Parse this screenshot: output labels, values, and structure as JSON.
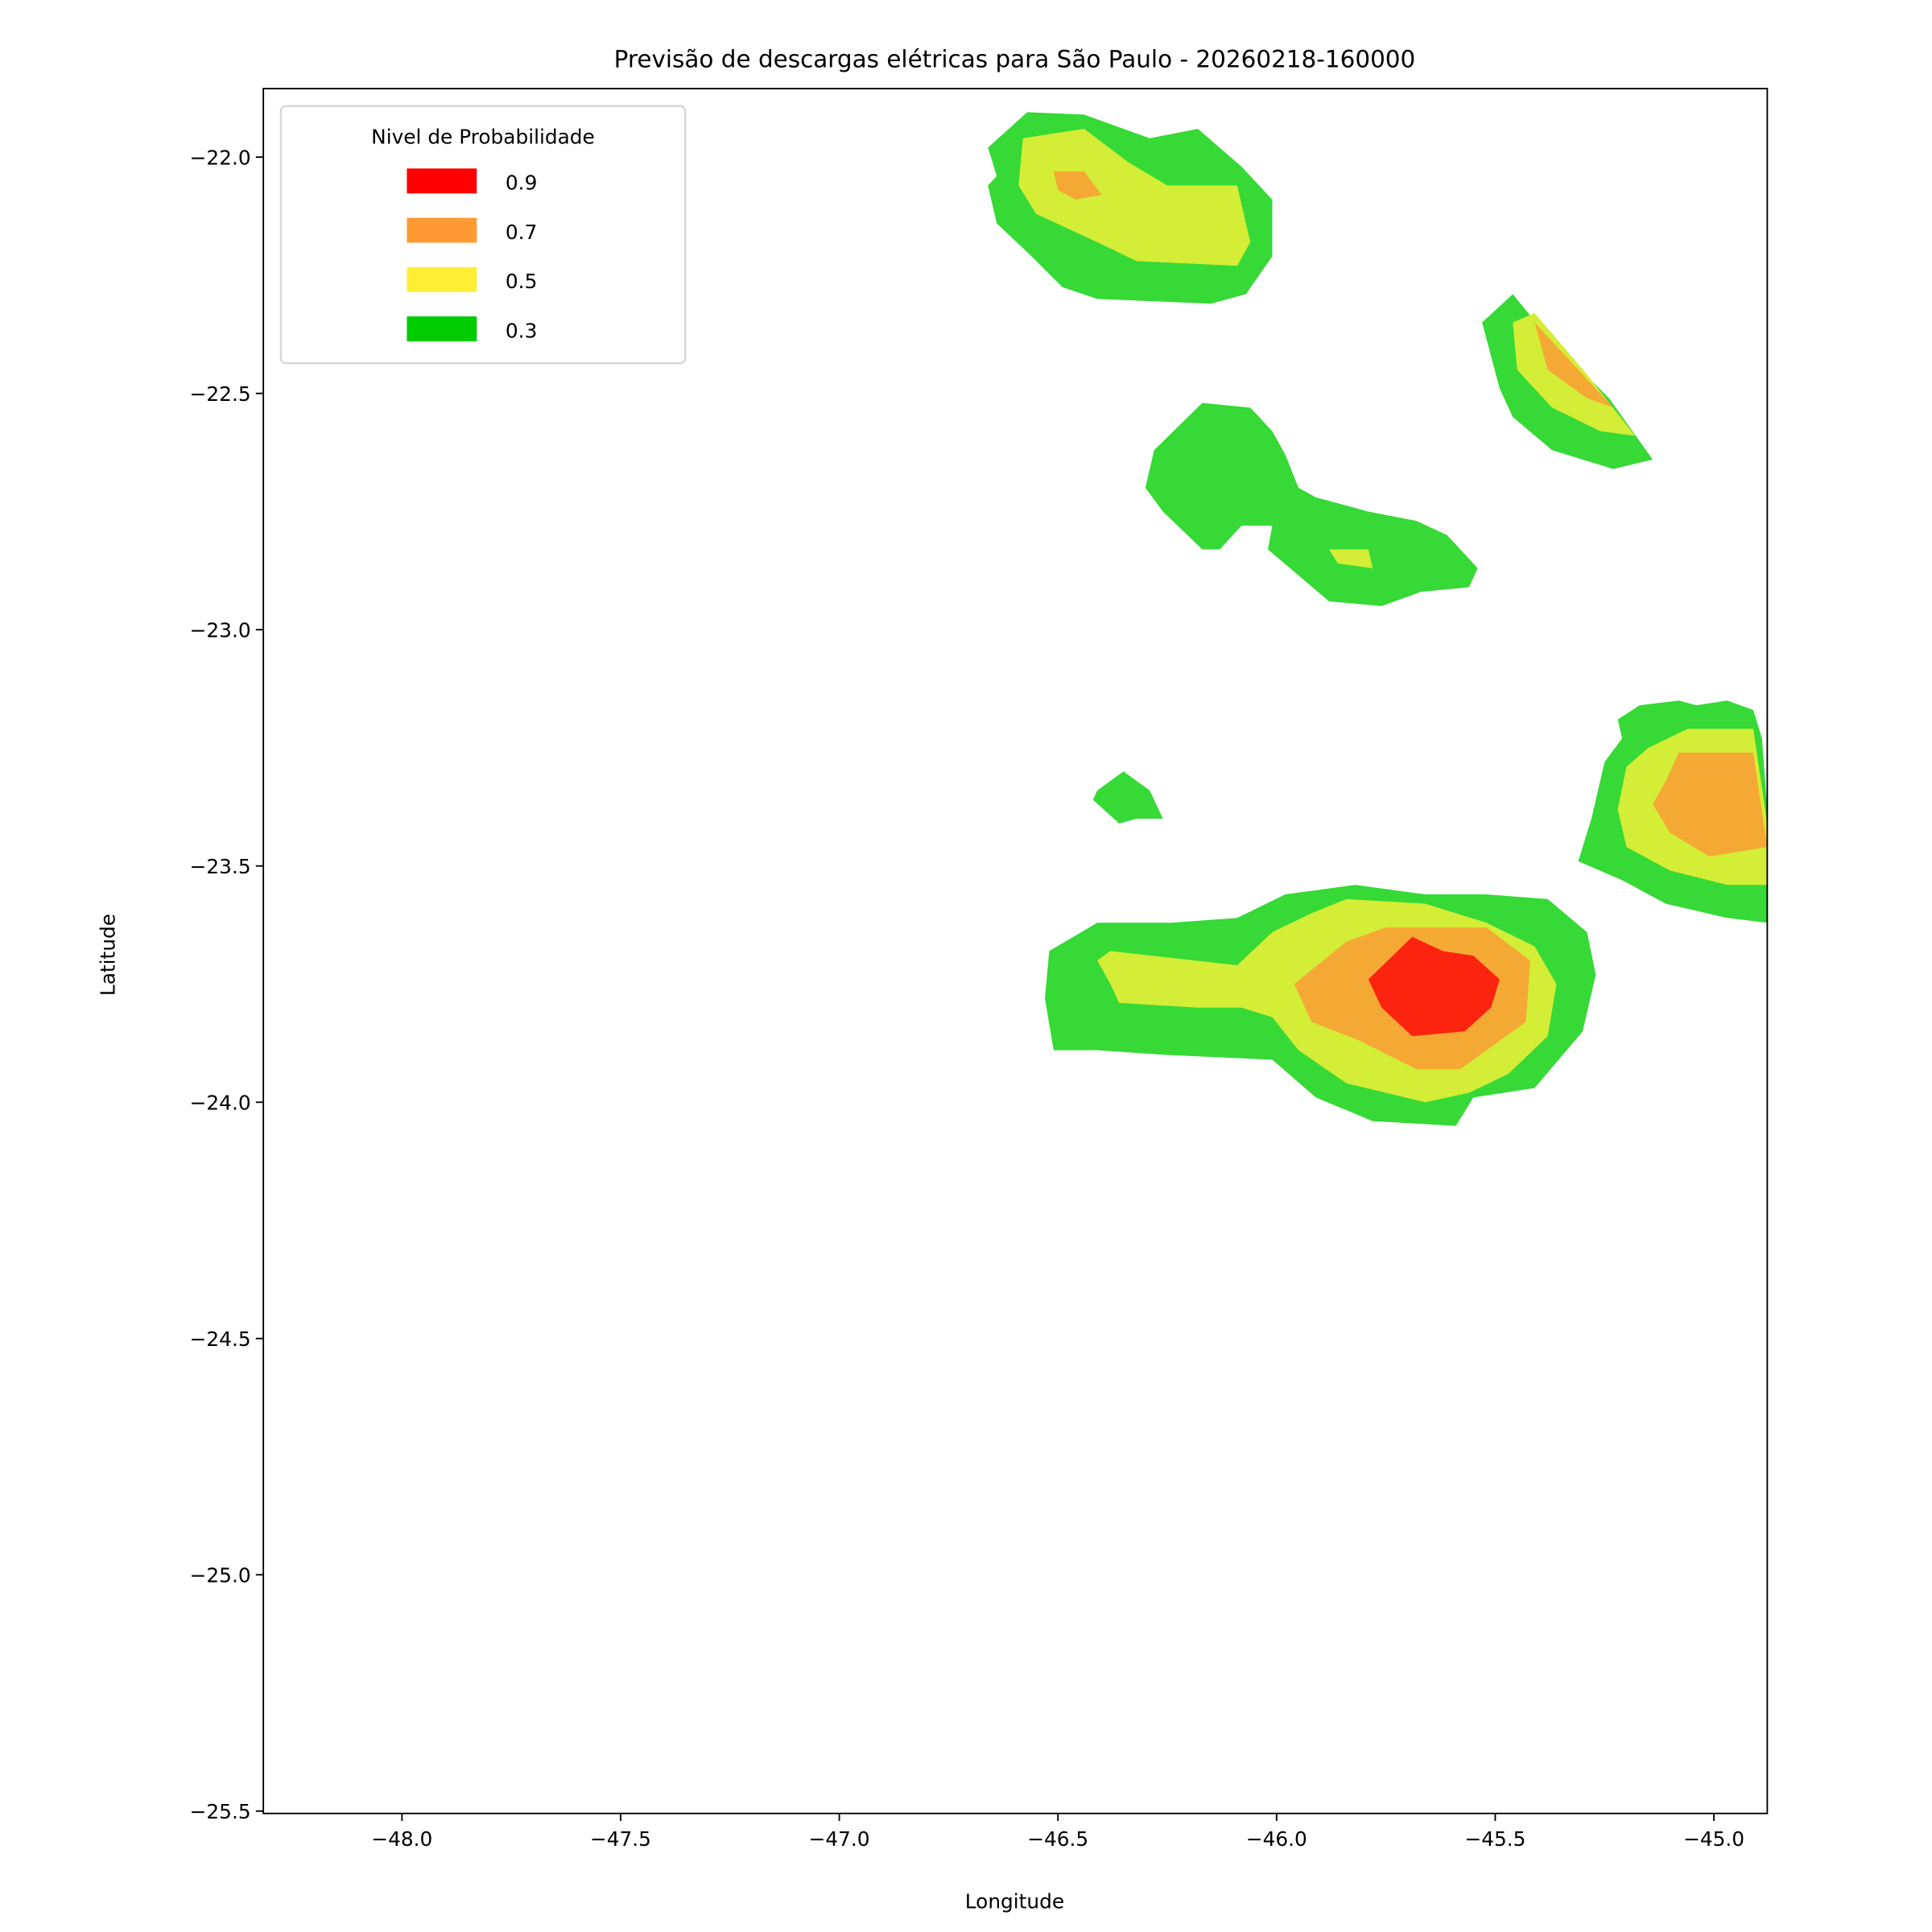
{
  "chart_data": {
    "type": "contourf",
    "title": "Previsão de descargas elétricas para São Paulo - 20260218-160000",
    "xlabel": "Longitude",
    "ylabel": "Latitude",
    "xlim": [
      -48.317,
      -44.878
    ],
    "ylim": [
      -25.505,
      -21.855
    ],
    "xticks": [
      -48.0,
      -47.5,
      -47.0,
      -46.5,
      -46.0,
      -45.5,
      -45.0
    ],
    "xtick_labels": [
      "−48.0",
      "−47.5",
      "−47.0",
      "−46.5",
      "−46.0",
      "−45.5",
      "−45.0"
    ],
    "yticks": [
      -22.0,
      -22.5,
      -23.0,
      -23.5,
      -24.0,
      -24.5,
      -25.0,
      -25.5
    ],
    "ytick_labels": [
      "−22.0",
      "−22.5",
      "−23.0",
      "−23.5",
      "−24.0",
      "−24.5",
      "−25.0",
      "−25.5"
    ],
    "grid": false,
    "legend": {
      "title": "Nivel de Probabilidade",
      "placement": "upper-left",
      "entries": [
        {
          "label": "0.9",
          "color": "#ff0000"
        },
        {
          "label": "0.7",
          "color": "#ff9933"
        },
        {
          "label": "0.5",
          "color": "#ffee33"
        },
        {
          "label": "0.3",
          "color": "#00cc00"
        }
      ]
    },
    "fill_colors": {
      "0.3": "#36d936",
      "0.5": "#d4ed36",
      "0.7": "#f5a935",
      "0.9": "#fc240e"
    },
    "regions": [
      {
        "level": "0.3",
        "points": [
          [
            -46.66,
            -21.98
          ],
          [
            -46.57,
            -21.905
          ],
          [
            -46.44,
            -21.91
          ],
          [
            -46.29,
            -21.96
          ],
          [
            -46.18,
            -21.94
          ],
          [
            -46.08,
            -22.02
          ],
          [
            -46.01,
            -22.09
          ],
          [
            -46.01,
            -22.21
          ],
          [
            -46.07,
            -22.29
          ],
          [
            -46.15,
            -22.31
          ],
          [
            -46.41,
            -22.3
          ],
          [
            -46.49,
            -22.275
          ],
          [
            -46.56,
            -22.21
          ],
          [
            -46.64,
            -22.14
          ],
          [
            -46.66,
            -22.06
          ],
          [
            -46.64,
            -22.04
          ]
        ]
      },
      {
        "level": "0.5",
        "points": [
          [
            -46.58,
            -21.96
          ],
          [
            -46.44,
            -21.94
          ],
          [
            -46.34,
            -22.01
          ],
          [
            -46.25,
            -22.06
          ],
          [
            -46.09,
            -22.06
          ],
          [
            -46.06,
            -22.18
          ],
          [
            -46.09,
            -22.23
          ],
          [
            -46.32,
            -22.22
          ],
          [
            -46.41,
            -22.18
          ],
          [
            -46.55,
            -22.12
          ],
          [
            -46.59,
            -22.06
          ]
        ]
      },
      {
        "level": "0.7",
        "points": [
          [
            -46.51,
            -22.03
          ],
          [
            -46.44,
            -22.03
          ],
          [
            -46.4,
            -22.08
          ],
          [
            -46.46,
            -22.09
          ],
          [
            -46.5,
            -22.07
          ]
        ]
      },
      {
        "level": "0.3",
        "points": [
          [
            -45.53,
            -22.35
          ],
          [
            -45.46,
            -22.29
          ],
          [
            -45.38,
            -22.38
          ],
          [
            -45.24,
            -22.51
          ],
          [
            -45.14,
            -22.64
          ],
          [
            -45.23,
            -22.66
          ],
          [
            -45.37,
            -22.62
          ],
          [
            -45.46,
            -22.55
          ],
          [
            -45.49,
            -22.49
          ]
        ]
      },
      {
        "level": "0.5",
        "points": [
          [
            -45.46,
            -22.35
          ],
          [
            -45.41,
            -22.33
          ],
          [
            -45.29,
            -22.46
          ],
          [
            -45.18,
            -22.59
          ],
          [
            -45.26,
            -22.58
          ],
          [
            -45.37,
            -22.53
          ],
          [
            -45.45,
            -22.45
          ]
        ]
      },
      {
        "level": "0.7",
        "points": [
          [
            -45.41,
            -22.35
          ],
          [
            -45.35,
            -22.41
          ],
          [
            -45.23,
            -22.53
          ],
          [
            -45.29,
            -22.51
          ],
          [
            -45.38,
            -22.45
          ]
        ]
      },
      {
        "level": "0.3",
        "points": [
          [
            -46.28,
            -22.62
          ],
          [
            -46.17,
            -22.52
          ],
          [
            -46.06,
            -22.53
          ],
          [
            -46.01,
            -22.58
          ],
          [
            -45.98,
            -22.63
          ],
          [
            -45.95,
            -22.7
          ],
          [
            -45.91,
            -22.72
          ],
          [
            -45.79,
            -22.75
          ],
          [
            -45.68,
            -22.77
          ],
          [
            -45.61,
            -22.8
          ],
          [
            -45.54,
            -22.87
          ],
          [
            -45.56,
            -22.91
          ],
          [
            -45.67,
            -22.92
          ],
          [
            -45.76,
            -22.95
          ],
          [
            -45.88,
            -22.94
          ],
          [
            -46.02,
            -22.83
          ],
          [
            -46.01,
            -22.78
          ],
          [
            -46.08,
            -22.78
          ],
          [
            -46.13,
            -22.83
          ],
          [
            -46.17,
            -22.83
          ],
          [
            -46.26,
            -22.75
          ],
          [
            -46.3,
            -22.7
          ]
        ]
      },
      {
        "level": "0.5",
        "points": [
          [
            -45.88,
            -22.83
          ],
          [
            -45.79,
            -22.83
          ],
          [
            -45.78,
            -22.87
          ],
          [
            -45.86,
            -22.86
          ]
        ]
      },
      {
        "level": "0.3",
        "points": [
          [
            -46.41,
            -23.34
          ],
          [
            -46.35,
            -23.3
          ],
          [
            -46.29,
            -23.34
          ],
          [
            -46.26,
            -23.4
          ],
          [
            -46.32,
            -23.4
          ],
          [
            -46.36,
            -23.41
          ],
          [
            -46.42,
            -23.36
          ]
        ]
      },
      {
        "level": "0.3",
        "points": [
          [
            -45.22,
            -23.19
          ],
          [
            -45.17,
            -23.16
          ],
          [
            -45.08,
            -23.15
          ],
          [
            -45.04,
            -23.16
          ],
          [
            -44.97,
            -23.15
          ],
          [
            -44.91,
            -23.17
          ],
          [
            -44.89,
            -23.23
          ],
          [
            -44.878,
            -23.38
          ],
          [
            -44.878,
            -23.62
          ],
          [
            -44.97,
            -23.61
          ],
          [
            -45.11,
            -23.58
          ],
          [
            -45.21,
            -23.53
          ],
          [
            -45.31,
            -23.49
          ],
          [
            -45.28,
            -23.4
          ],
          [
            -45.25,
            -23.28
          ],
          [
            -45.21,
            -23.23
          ]
        ]
      },
      {
        "level": "0.5",
        "points": [
          [
            -45.15,
            -23.25
          ],
          [
            -45.06,
            -23.21
          ],
          [
            -44.91,
            -23.21
          ],
          [
            -44.878,
            -23.41
          ],
          [
            -44.878,
            -23.54
          ],
          [
            -44.97,
            -23.54
          ],
          [
            -45.1,
            -23.51
          ],
          [
            -45.2,
            -23.46
          ],
          [
            -45.22,
            -23.38
          ],
          [
            -45.2,
            -23.29
          ]
        ]
      },
      {
        "level": "0.7",
        "points": [
          [
            -45.08,
            -23.26
          ],
          [
            -44.91,
            -23.26
          ],
          [
            -44.878,
            -23.46
          ],
          [
            -45.01,
            -23.48
          ],
          [
            -45.1,
            -23.43
          ],
          [
            -45.14,
            -23.37
          ],
          [
            -45.11,
            -23.32
          ]
        ]
      },
      {
        "level": "0.3",
        "points": [
          [
            -46.52,
            -23.68
          ],
          [
            -46.41,
            -23.62
          ],
          [
            -46.24,
            -23.62
          ],
          [
            -46.09,
            -23.61
          ],
          [
            -45.98,
            -23.56
          ],
          [
            -45.82,
            -23.54
          ],
          [
            -45.66,
            -23.56
          ],
          [
            -45.52,
            -23.56
          ],
          [
            -45.38,
            -23.57
          ],
          [
            -45.29,
            -23.64
          ],
          [
            -45.27,
            -23.73
          ],
          [
            -45.3,
            -23.85
          ],
          [
            -45.41,
            -23.97
          ],
          [
            -45.55,
            -23.99
          ],
          [
            -45.59,
            -24.05
          ],
          [
            -45.78,
            -24.04
          ],
          [
            -45.91,
            -23.99
          ],
          [
            -46.01,
            -23.91
          ],
          [
            -46.25,
            -23.9
          ],
          [
            -46.41,
            -23.89
          ],
          [
            -46.51,
            -23.89
          ],
          [
            -46.53,
            -23.78
          ]
        ]
      },
      {
        "level": "0.5",
        "points": [
          [
            -46.41,
            -23.7
          ],
          [
            -46.38,
            -23.68
          ],
          [
            -46.09,
            -23.71
          ],
          [
            -46.01,
            -23.64
          ],
          [
            -45.92,
            -23.6
          ],
          [
            -45.84,
            -23.57
          ],
          [
            -45.66,
            -23.58
          ],
          [
            -45.52,
            -23.62
          ],
          [
            -45.41,
            -23.67
          ],
          [
            -45.36,
            -23.75
          ],
          [
            -45.38,
            -23.86
          ],
          [
            -45.47,
            -23.94
          ],
          [
            -45.56,
            -23.98
          ],
          [
            -45.66,
            -24.0
          ],
          [
            -45.84,
            -23.96
          ],
          [
            -45.95,
            -23.89
          ],
          [
            -46.01,
            -23.82
          ],
          [
            -46.08,
            -23.8
          ],
          [
            -46.18,
            -23.8
          ],
          [
            -46.36,
            -23.79
          ],
          [
            -46.38,
            -23.75
          ]
        ]
      },
      {
        "level": "0.7",
        "points": [
          [
            -45.96,
            -23.75
          ],
          [
            -45.84,
            -23.66
          ],
          [
            -45.75,
            -23.63
          ],
          [
            -45.52,
            -23.63
          ],
          [
            -45.42,
            -23.7
          ],
          [
            -45.43,
            -23.83
          ],
          [
            -45.49,
            -23.87
          ],
          [
            -45.58,
            -23.93
          ],
          [
            -45.68,
            -23.93
          ],
          [
            -45.81,
            -23.87
          ],
          [
            -45.92,
            -23.83
          ]
        ]
      },
      {
        "level": "0.9",
        "points": [
          [
            -45.79,
            -23.74
          ],
          [
            -45.69,
            -23.65
          ],
          [
            -45.62,
            -23.68
          ],
          [
            -45.55,
            -23.69
          ],
          [
            -45.49,
            -23.74
          ],
          [
            -45.51,
            -23.8
          ],
          [
            -45.57,
            -23.85
          ],
          [
            -45.69,
            -23.86
          ],
          [
            -45.76,
            -23.8
          ]
        ]
      }
    ]
  }
}
